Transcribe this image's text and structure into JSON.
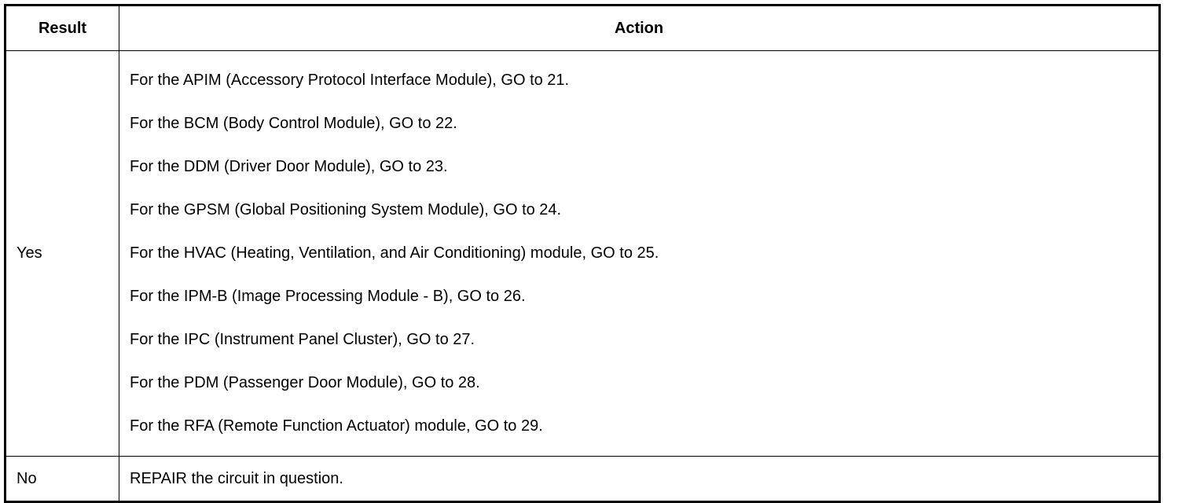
{
  "table": {
    "headers": [
      "Result",
      "Action"
    ],
    "rows": [
      {
        "result": "Yes",
        "actions": [
          "For the APIM (Accessory Protocol Interface Module), GO to 21.",
          "For the BCM (Body Control Module), GO to 22.",
          "For the DDM (Driver Door Module), GO to 23.",
          "For the GPSM (Global Positioning System Module), GO to 24.",
          "For the HVAC (Heating, Ventilation, and Air Conditioning) module, GO to 25.",
          "For the IPM-B (Image Processing Module - B), GO to 26.",
          "For the IPC (Instrument Panel Cluster), GO to 27.",
          "For the PDM (Passenger Door Module), GO to 28.",
          "For the RFA (Remote Function Actuator) module, GO to 29."
        ]
      },
      {
        "result": "No",
        "actions": [
          "REPAIR the circuit in question."
        ]
      }
    ]
  }
}
